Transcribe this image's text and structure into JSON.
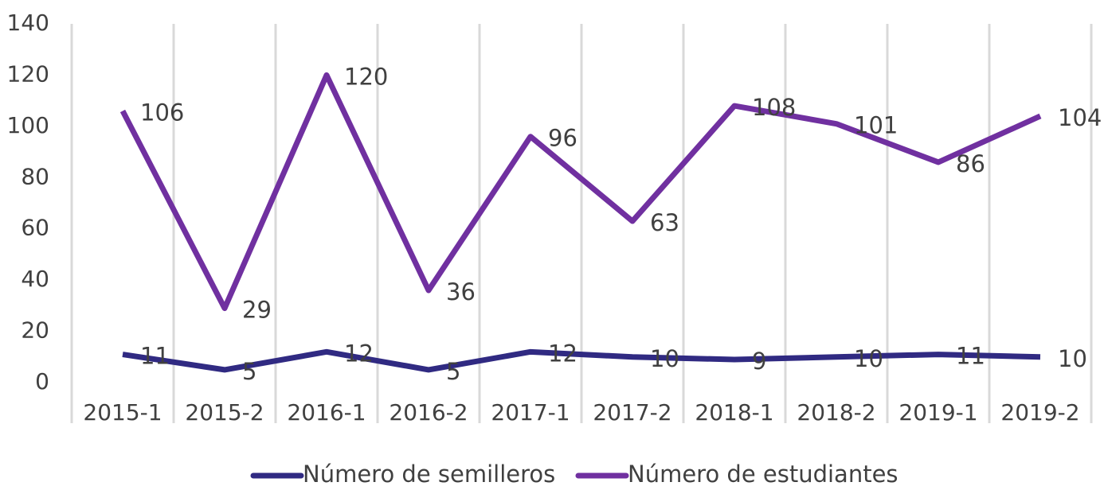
{
  "chart_data": {
    "type": "line",
    "categories": [
      "2015-1",
      "2015-2",
      "2016-1",
      "2016-2",
      "2017-1",
      "2017-2",
      "2018-1",
      "2018-2",
      "2019-1",
      "2019-2"
    ],
    "series": [
      {
        "name": "Número de semilleros",
        "color": "#302a82",
        "values": [
          11,
          5,
          12,
          5,
          12,
          10,
          9,
          10,
          11,
          10
        ]
      },
      {
        "name": "Número de estudiantes",
        "color": "#7030a0",
        "values": [
          106,
          29,
          120,
          36,
          96,
          63,
          108,
          101,
          86,
          104
        ]
      }
    ],
    "ylim": [
      0,
      140
    ],
    "yticks": [
      0,
      20,
      40,
      60,
      80,
      100,
      120,
      140
    ],
    "grid": true,
    "legend": "bottom"
  }
}
